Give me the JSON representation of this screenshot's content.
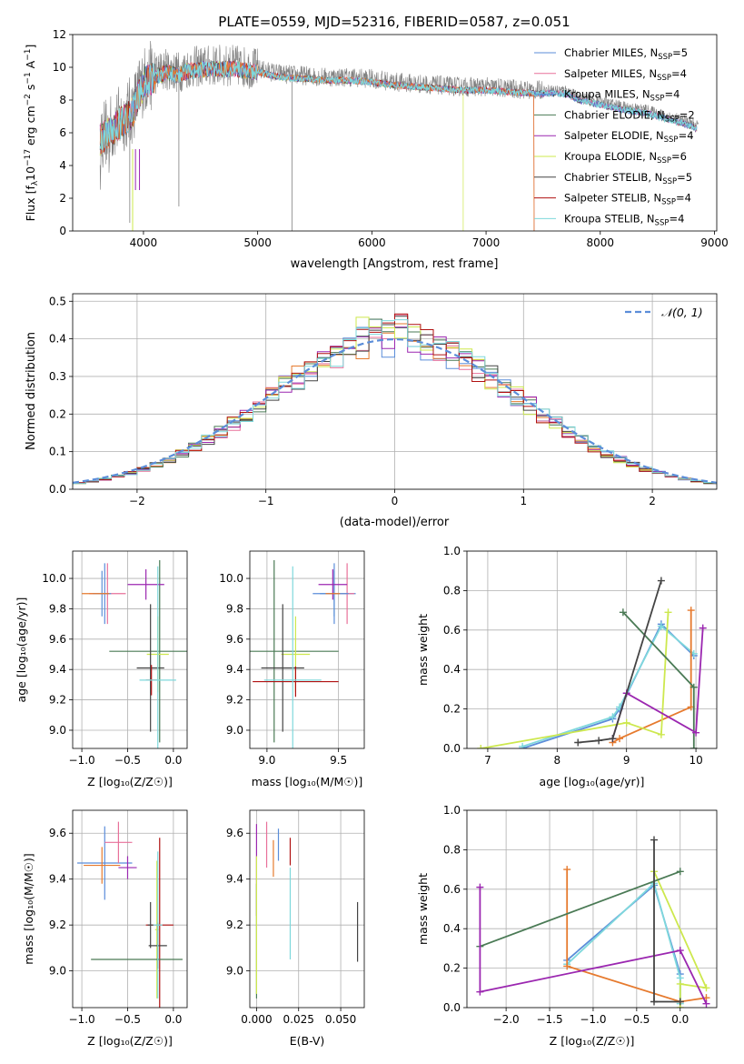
{
  "colors": {
    "chabrier_miles": "#5b8dd9",
    "salpeter_miles": "#e8709a",
    "kroupa_miles": "#5a8fd6",
    "chabrier_elodie": "#4a7a55",
    "salpeter_elodie": "#9b27b0",
    "kroupa_elodie": "#cde84e",
    "chabrier_stelib": "#444444",
    "salpeter_stelib": "#b01010",
    "kroupa_stelib": "#7ed8dc",
    "orange": "#e67a2e",
    "gauss": "#5b8dd9",
    "data_gray": "#808080",
    "grid": "#b0b0b0"
  },
  "chart_data": [
    {
      "id": "spectrum",
      "type": "line",
      "title": "PLATE=0559, MJD=52316, FIBERID=0587, z=0.051",
      "xlabel": "wavelength [Angstrom, rest frame]",
      "ylabel_main": "Flux [f",
      "ylabel_sub": "λ",
      "ylabel_rest": "10",
      "ylabel_exp1": "−17",
      "ylabel_units": " erg cm",
      "ylabel_exp2": "−2",
      "ylabel_s": " s",
      "ylabel_exp3": "−1",
      "ylabel_A": " A",
      "ylabel_exp4": "−1",
      "ylabel_end": "]",
      "xlim": [
        3380,
        9020
      ],
      "ylim": [
        0,
        12
      ],
      "xticks": [
        "4000",
        "5000",
        "6000",
        "7000",
        "8000",
        "9000"
      ],
      "yticks": [
        "0",
        "2",
        "4",
        "6",
        "8",
        "10",
        "12"
      ],
      "grid": false,
      "legend_placement": "top-right",
      "legend": [
        {
          "name": "Chabrier MILES, N",
          "sub": "SSP",
          "val": "=5",
          "color": "#5b8dd9"
        },
        {
          "name": "Salpeter MILES, N",
          "sub": "SSP",
          "val": "=4",
          "color": "#e8709a"
        },
        {
          "name": "Kroupa MILES, N",
          "sub": "SSP",
          "val": "=4",
          "color": "#5a8fd6"
        },
        {
          "name": "Chabrier ELODIE, N",
          "sub": "SSP",
          "val": "=2",
          "color": "#4a7a55"
        },
        {
          "name": "Salpeter ELODIE, N",
          "sub": "SSP",
          "val": "=4",
          "color": "#9b27b0"
        },
        {
          "name": "Kroupa ELODIE, N",
          "sub": "SSP",
          "val": "=6",
          "color": "#cde84e"
        },
        {
          "name": "Chabrier STELIB, N",
          "sub": "SSP",
          "val": "=5",
          "color": "#444444"
        },
        {
          "name": "Salpeter STELIB, N",
          "sub": "SSP",
          "val": "=4",
          "color": "#b01010"
        },
        {
          "name": "Kroupa STELIB, N",
          "sub": "SSP",
          "val": "=4",
          "color": "#7ed8dc"
        }
      ],
      "continuum": [
        [
          3620,
          5.8
        ],
        [
          3700,
          6.2
        ],
        [
          3800,
          6.8
        ],
        [
          3900,
          7.4
        ],
        [
          4000,
          9.2
        ],
        [
          4100,
          9.6
        ],
        [
          4200,
          9.9
        ],
        [
          4300,
          9.7
        ],
        [
          4400,
          10.0
        ],
        [
          4600,
          10.1
        ],
        [
          4800,
          10.1
        ],
        [
          5000,
          9.9
        ],
        [
          5200,
          9.6
        ],
        [
          5400,
          9.5
        ],
        [
          5600,
          9.4
        ],
        [
          5800,
          9.4
        ],
        [
          6000,
          9.3
        ],
        [
          6200,
          9.1
        ],
        [
          6400,
          9.0
        ],
        [
          6600,
          8.9
        ],
        [
          6800,
          8.8
        ],
        [
          7000,
          8.8
        ],
        [
          7200,
          8.7
        ],
        [
          7400,
          8.6
        ],
        [
          7600,
          8.6
        ],
        [
          7700,
          8.6
        ],
        [
          7800,
          8.2
        ],
        [
          8000,
          7.9
        ],
        [
          8200,
          7.6
        ],
        [
          8400,
          7.4
        ],
        [
          8600,
          7.0
        ],
        [
          8800,
          6.6
        ],
        [
          8850,
          6.4
        ]
      ],
      "model_end_by_library": {
        "stelib_and_elodie": 6800,
        "salpeter_stelib": 7420
      }
    },
    {
      "id": "residuals",
      "type": "area",
      "xlabel": "(data-model)/error",
      "ylabel": "Normed distribution",
      "xlim": [
        -2.5,
        2.5
      ],
      "ylim": [
        0,
        0.52
      ],
      "xticks": [
        "−2",
        "−1",
        "0",
        "1",
        "2"
      ],
      "yticks": [
        "0.0",
        "0.1",
        "0.2",
        "0.3",
        "0.4",
        "0.5"
      ],
      "grid": true,
      "legend_placement": "top-right",
      "legend": [
        {
          "name": "𝒩(0, 1)",
          "style": "dashed",
          "color": "#5b8dd9"
        }
      ],
      "bin_width": 0.1,
      "gauss": {
        "mu": 0,
        "sigma": 1
      }
    },
    {
      "id": "Z-age",
      "type": "scatter",
      "xlabel": "Z [log₁₀(Z/Z☉)]",
      "ylabel": "age  [log₁₀(age/yr)]",
      "xlim": [
        -1.1,
        0.15
      ],
      "ylim": [
        8.88,
        10.18
      ],
      "xticks": [
        "−1.0",
        "−0.5",
        "0.0"
      ],
      "yticks": [
        "9.0",
        "9.2",
        "9.4",
        "9.6",
        "9.8",
        "10.0"
      ],
      "grid": true,
      "points": [
        {
          "x": -0.75,
          "xerr": 0.05,
          "y": 9.9,
          "yerr": 0.2,
          "color": "#5b8dd9"
        },
        {
          "x": -0.72,
          "xerr": 0.2,
          "y": 9.9,
          "yerr": 0.2,
          "color": "#e8709a"
        },
        {
          "x": -0.78,
          "xerr": 0.1,
          "y": 9.9,
          "yerr": 0.15,
          "color": "#5a8fd6"
        },
        {
          "x": -0.15,
          "xerr": 0.55,
          "y": 9.52,
          "yerr": 0.6,
          "color": "#4a7a55"
        },
        {
          "x": -0.3,
          "xerr": 0.2,
          "y": 9.96,
          "yerr": 0.1,
          "color": "#9b27b0"
        },
        {
          "x": -0.17,
          "xerr": 0.12,
          "y": 9.5,
          "yerr": 0.25,
          "color": "#cde84e"
        },
        {
          "x": -0.25,
          "xerr": 0.15,
          "y": 9.41,
          "yerr": 0.42,
          "color": "#444444"
        },
        {
          "x": -0.24,
          "xerr": 0.06,
          "y": 9.33,
          "yerr": 0.1,
          "color": "#b01010"
        },
        {
          "x": -0.17,
          "xerr": 0.2,
          "y": 9.33,
          "yerr": 0.75,
          "color": "#7ed8dc"
        },
        {
          "x": -0.85,
          "xerr": 0.15,
          "y": 9.9,
          "yerr": 0.0,
          "color": "#e67a2e"
        }
      ]
    },
    {
      "id": "mass-age",
      "type": "scatter",
      "xlabel": "mass [log₁₀(M/M☉)]",
      "xlim": [
        8.88,
        9.68
      ],
      "ylim": [
        8.88,
        10.18
      ],
      "xticks": [
        "9.0",
        "9.5"
      ],
      "yticks": [
        "9.0",
        "9.2",
        "9.4",
        "9.6",
        "9.8",
        "10.0"
      ],
      "grid": true,
      "points": [
        {
          "x": 9.47,
          "xerr": 0.15,
          "y": 9.9,
          "yerr": 0.2,
          "color": "#5b8dd9"
        },
        {
          "x": 9.56,
          "xerr": 0.05,
          "y": 9.9,
          "yerr": 0.2,
          "color": "#e8709a"
        },
        {
          "x": 9.47,
          "xerr": 0.1,
          "y": 9.9,
          "yerr": 0.15,
          "color": "#5a8fd6"
        },
        {
          "x": 9.05,
          "xerr": 0.45,
          "y": 9.52,
          "yerr": 0.6,
          "color": "#4a7a55"
        },
        {
          "x": 9.46,
          "xerr": 0.1,
          "y": 9.96,
          "yerr": 0.1,
          "color": "#9b27b0"
        },
        {
          "x": 9.2,
          "xerr": 0.1,
          "y": 9.5,
          "yerr": 0.25,
          "color": "#cde84e"
        },
        {
          "x": 9.11,
          "xerr": 0.15,
          "y": 9.41,
          "yerr": 0.42,
          "color": "#444444"
        },
        {
          "x": 9.2,
          "xerr": 0.3,
          "y": 9.32,
          "yerr": 0.1,
          "color": "#b01010"
        },
        {
          "x": 9.18,
          "xerr": 0.2,
          "y": 9.33,
          "yerr": 0.75,
          "color": "#7ed8dc"
        },
        {
          "x": 9.46,
          "xerr": 0.05,
          "y": 9.9,
          "yerr": 0.0,
          "color": "#e67a2e"
        }
      ]
    },
    {
      "id": "age-weight",
      "type": "line",
      "xlabel": "age  [log₁₀(age/yr)]",
      "ylabel": "mass weight",
      "xlim": [
        6.7,
        10.3
      ],
      "ylim": [
        0,
        1.0
      ],
      "xticks": [
        "7",
        "8",
        "9",
        "10"
      ],
      "yticks": [
        "0.0",
        "0.2",
        "0.4",
        "0.6",
        "0.8",
        "1.0"
      ],
      "grid": true,
      "series": [
        {
          "color": "#5b8dd9",
          "x": [
            7.5,
            8.8,
            8.9,
            9.5,
            9.97
          ],
          "y": [
            0.0,
            0.15,
            0.2,
            0.63,
            0.47
          ]
        },
        {
          "color": "#7ed8dc",
          "x": [
            7.5,
            8.8,
            8.9,
            9.5,
            9.97
          ],
          "y": [
            0.01,
            0.16,
            0.21,
            0.62,
            0.48
          ]
        },
        {
          "color": "#e67a2e",
          "x": [
            9.93,
            9.93,
            8.9,
            8.8
          ],
          "y": [
            0.7,
            0.21,
            0.05,
            0.03
          ]
        },
        {
          "color": "#cde84e",
          "x": [
            6.9,
            9.0,
            9.5,
            9.6
          ],
          "y": [
            0.0,
            0.13,
            0.07,
            0.69
          ]
        },
        {
          "color": "#4a7a55",
          "x": [
            8.95,
            9.97,
            9.97
          ],
          "y": [
            0.69,
            0.31,
            0.0
          ]
        },
        {
          "color": "#9b27b0",
          "x": [
            8.8,
            9.0,
            10.0,
            10.1
          ],
          "y": [
            0.05,
            0.28,
            0.08,
            0.61
          ]
        },
        {
          "color": "#444444",
          "x": [
            8.3,
            8.6,
            8.8,
            9.5
          ],
          "y": [
            0.03,
            0.04,
            0.05,
            0.85
          ]
        }
      ]
    },
    {
      "id": "Z-mass",
      "type": "scatter",
      "xlabel": "Z [log₁₀(Z/Z☉)]",
      "ylabel": "mass [log₁₀(M/M☉)]",
      "xlim": [
        -1.1,
        0.15
      ],
      "ylim": [
        8.84,
        9.7
      ],
      "xticks": [
        "−1.0",
        "−0.5",
        "0.0"
      ],
      "yticks": [
        "9.0",
        "9.2",
        "9.4",
        "9.6"
      ],
      "grid": true,
      "points": [
        {
          "x": -0.75,
          "xerr": 0.3,
          "y": 9.47,
          "yerr": 0.16,
          "color": "#5b8dd9"
        },
        {
          "x": -0.6,
          "xerr": 0.15,
          "y": 9.56,
          "yerr": 0.09,
          "color": "#e8709a"
        },
        {
          "x": -0.78,
          "xerr": 0.2,
          "y": 9.46,
          "yerr": 0.08,
          "color": "#e67a2e"
        },
        {
          "x": -0.5,
          "xerr": 0.1,
          "y": 9.45,
          "yerr": 0.05,
          "color": "#9b27b0"
        },
        {
          "x": -0.18,
          "xerr": 0.02,
          "y": 9.18,
          "yerr": 0.3,
          "color": "#cde84e"
        },
        {
          "x": -0.15,
          "xerr": 0.15,
          "y": 9.2,
          "yerr": 0.38,
          "color": "#b01010"
        },
        {
          "x": -0.25,
          "xerr": 0.03,
          "y": 9.2,
          "yerr": 0.1,
          "color": "#444444"
        },
        {
          "x": -0.17,
          "xerr": 0.1,
          "y": 9.11,
          "yerr": 0.1,
          "color": "#444444"
        },
        {
          "x": -0.4,
          "xerr": 0.5,
          "y": 9.05,
          "yerr": 0.0,
          "color": "#4a7a55"
        },
        {
          "x": -0.17,
          "xerr": 0.05,
          "y": 9.2,
          "yerr": 0.32,
          "color": "#7ed8dc"
        }
      ]
    },
    {
      "id": "ebv-mass",
      "type": "scatter",
      "xlabel": "E(B-V)",
      "xlim": [
        -0.004,
        0.064
      ],
      "ylim": [
        8.84,
        9.7
      ],
      "xticks": [
        "0.000",
        "0.025",
        "0.050"
      ],
      "yticks": [
        "9.0",
        "9.2",
        "9.4",
        "9.6"
      ],
      "grid": true,
      "points": [
        {
          "x": 0.0,
          "y": 9.44,
          "yerr": 0.2,
          "color": "#9b27b0"
        },
        {
          "x": 0.0,
          "y": 9.13,
          "yerr": 0.25,
          "color": "#4a7a55"
        },
        {
          "x": 0.0,
          "y": 9.2,
          "yerr": 0.3,
          "color": "#cde84e"
        },
        {
          "x": 0.006,
          "y": 9.55,
          "yerr": 0.1,
          "color": "#e8709a"
        },
        {
          "x": 0.01,
          "y": 9.49,
          "yerr": 0.08,
          "color": "#e67a2e"
        },
        {
          "x": 0.013,
          "y": 9.55,
          "yerr": 0.07,
          "color": "#5b8dd9"
        },
        {
          "x": 0.02,
          "y": 9.52,
          "yerr": 0.06,
          "color": "#b01010"
        },
        {
          "x": 0.02,
          "y": 9.25,
          "yerr": 0.2,
          "color": "#7ed8dc"
        },
        {
          "x": 0.06,
          "y": 9.17,
          "yerr": 0.13,
          "color": "#444444"
        }
      ]
    },
    {
      "id": "Z-weight",
      "type": "line",
      "xlabel": "Z [log₁₀(Z/Z☉)]",
      "ylabel": "mass weight",
      "xlim": [
        -2.45,
        0.42
      ],
      "ylim": [
        0,
        1.0
      ],
      "xticks": [
        "−2.0",
        "−1.5",
        "−1.0",
        "−0.5",
        "0.0"
      ],
      "yticks": [
        "0.0",
        "0.2",
        "0.4",
        "0.6",
        "0.8",
        "1.0"
      ],
      "grid": true,
      "series": [
        {
          "color": "#5b8dd9",
          "x": [
            -1.3,
            -0.3,
            0.0,
            0.0
          ],
          "y": [
            0.24,
            0.62,
            0.17,
            0.03
          ]
        },
        {
          "color": "#7ed8dc",
          "x": [
            -1.3,
            -0.3,
            0.0,
            0.0
          ],
          "y": [
            0.22,
            0.63,
            0.15,
            0.02
          ]
        },
        {
          "color": "#e67a2e",
          "x": [
            -1.3,
            -1.3,
            0.0,
            0.3
          ],
          "y": [
            0.7,
            0.21,
            0.03,
            0.05
          ]
        },
        {
          "color": "#cde84e",
          "x": [
            0.0,
            0.0,
            0.3,
            -0.3
          ],
          "y": [
            0.0,
            0.12,
            0.1,
            0.69
          ]
        },
        {
          "color": "#4a7a55",
          "x": [
            -2.3,
            0.0
          ],
          "y": [
            0.31,
            0.69
          ]
        },
        {
          "color": "#9b27b0",
          "x": [
            -2.3,
            -2.3,
            0.0,
            0.3
          ],
          "y": [
            0.61,
            0.08,
            0.29,
            0.02
          ]
        },
        {
          "color": "#444444",
          "x": [
            -0.3,
            -0.3,
            0.0
          ],
          "y": [
            0.85,
            0.03,
            0.03
          ]
        }
      ]
    }
  ]
}
